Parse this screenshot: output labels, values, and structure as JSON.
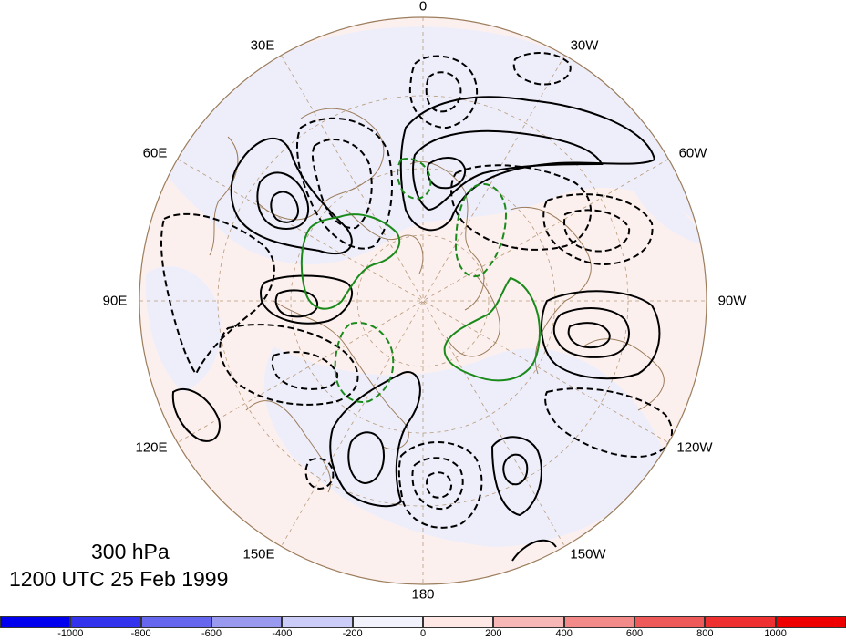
{
  "title": {
    "level": "300 hPa",
    "time": "1200 UTC 25 Feb 1999"
  },
  "map": {
    "projection": "polar stereographic",
    "hemisphere": "northern",
    "longitude_labels": [
      {
        "lon": 0,
        "text": "0"
      },
      {
        "lon": -30,
        "text": "30W"
      },
      {
        "lon": -60,
        "text": "60W"
      },
      {
        "lon": -90,
        "text": "90W"
      },
      {
        "lon": -120,
        "text": "120W"
      },
      {
        "lon": -150,
        "text": "150W"
      },
      {
        "lon": 180,
        "text": "180"
      },
      {
        "lon": 150,
        "text": "150E"
      },
      {
        "lon": 120,
        "text": "120E"
      },
      {
        "lon": 90,
        "text": "90E"
      },
      {
        "lon": 60,
        "text": "60E"
      },
      {
        "lon": 30,
        "text": "30E"
      }
    ],
    "contour_colors": {
      "positive": "#000000",
      "negative": "#000000",
      "zero": "#1a8a1a",
      "coast": "#9c7d5c"
    },
    "shading_colors": {
      "negative": "#eeeefb",
      "positive": "#fcf0ee"
    }
  },
  "colorbar": {
    "labels": [
      "-1000",
      "-800",
      "-600",
      "-400",
      "-200",
      "0",
      "200",
      "400",
      "600",
      "800",
      "1000"
    ],
    "colors": [
      "#0000ee",
      "#3333ee",
      "#6666ee",
      "#9999f0",
      "#ccccf8",
      "#f2f2fd",
      "#fde8e6",
      "#f8b7b7",
      "#f38a8a",
      "#ee5a5a",
      "#ee3030",
      "#ee0000"
    ]
  }
}
